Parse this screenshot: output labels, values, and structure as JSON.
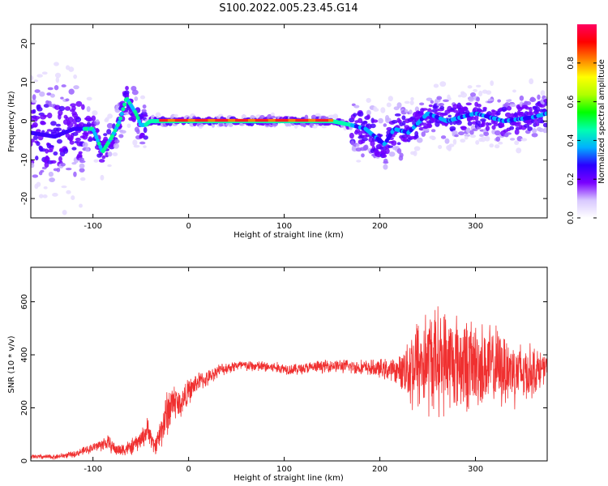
{
  "title": "S100.2022.005.23.45.G14",
  "chart_data": [
    {
      "type": "heatmap",
      "xlabel": "Height of straight line (km)",
      "ylabel": "Frequency (Hz)",
      "xlim": [
        -165,
        375
      ],
      "ylim": [
        -25,
        25
      ],
      "xticks": [
        -100,
        0,
        100,
        200,
        300
      ],
      "yticks": [
        -20,
        -10,
        0,
        10,
        20
      ],
      "ridge": {
        "x": [
          -165,
          -140,
          -120,
          -100,
          -90,
          -80,
          -72,
          -65,
          -60,
          -55,
          -50,
          -45,
          -40,
          -30,
          0,
          50,
          100,
          150,
          170,
          185,
          195,
          205,
          215,
          230,
          250,
          270,
          300,
          330,
          360,
          375
        ],
        "y": [
          -3,
          -4,
          -2,
          -2,
          -8,
          -4,
          0,
          6,
          4,
          2,
          -1,
          -1,
          0,
          0,
          0,
          0,
          0,
          0,
          -1,
          -2,
          -4,
          -6,
          -2,
          -3,
          2,
          0,
          2,
          0,
          1,
          2
        ]
      },
      "colorbar": {
        "label": "Normalized spectral amplitude",
        "range": [
          0,
          1
        ],
        "ticks": [
          "0.0",
          "0.2",
          "0.4",
          "0.6",
          "0.8"
        ],
        "colors": [
          "#ffffff",
          "#d8c8ff",
          "#7a00ff",
          "#2a00ff",
          "#00b0ff",
          "#00ffb0",
          "#00ff00",
          "#b0ff00",
          "#ffff00",
          "#ff8000",
          "#ff0000",
          "#ff0060"
        ]
      }
    },
    {
      "type": "line",
      "xlabel": "Height of straight line (km)",
      "ylabel": "SNR (10 * v/v)",
      "xlim": [
        -165,
        375
      ],
      "ylim": [
        0,
        730
      ],
      "xticks": [
        -100,
        0,
        100,
        200,
        300
      ],
      "yticks": [
        0,
        200,
        400,
        600
      ],
      "color": "#f03030",
      "series": [
        {
          "x": [
            -165,
            -140,
            -120,
            -100,
            -85,
            -75,
            -60,
            -50,
            -42,
            -36,
            -30,
            -25,
            -20,
            -15,
            -10,
            0,
            10,
            20,
            30,
            50,
            80,
            110,
            150,
            190,
            220,
            235,
            250,
            270,
            300,
            330,
            350,
            360,
            375
          ],
          "y": [
            15,
            15,
            25,
            50,
            70,
            40,
            50,
            80,
            120,
            50,
            100,
            160,
            200,
            230,
            210,
            260,
            300,
            310,
            340,
            360,
            355,
            345,
            360,
            350,
            340,
            360,
            380,
            380,
            360,
            350,
            330,
            340,
            350
          ],
          "spread": [
            8,
            8,
            10,
            15,
            25,
            20,
            25,
            30,
            40,
            25,
            50,
            70,
            80,
            60,
            50,
            40,
            30,
            25,
            20,
            18,
            18,
            18,
            20,
            25,
            40,
            150,
            170,
            160,
            140,
            120,
            100,
            80,
            40
          ]
        }
      ]
    }
  ]
}
